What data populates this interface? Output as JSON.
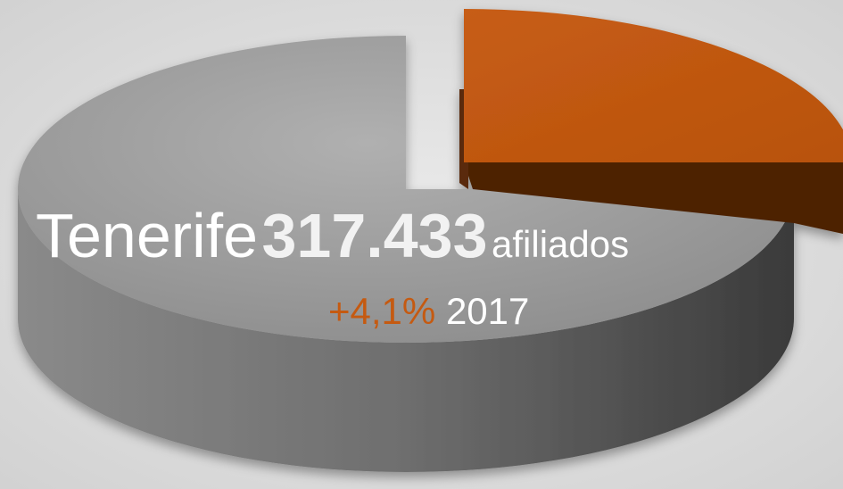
{
  "headline": {
    "place": "Tenerife",
    "value": "317.433",
    "unit": "afiliados"
  },
  "change": {
    "value": "+4,1%",
    "year": "2017"
  }
}
